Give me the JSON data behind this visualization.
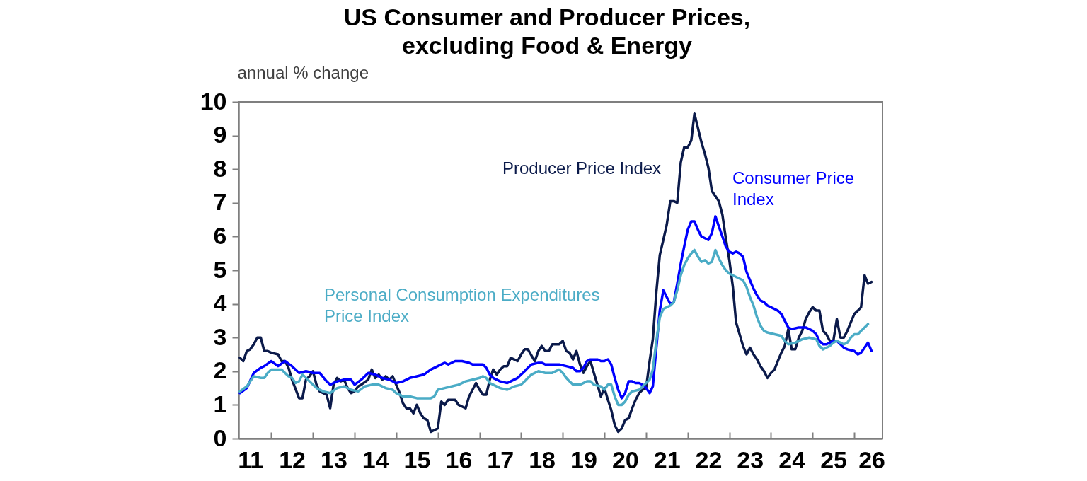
{
  "chart_data": {
    "type": "line",
    "title": "US Consumer and Producer Prices,\nexcluding Food & Energy",
    "ylabel": "annual % change",
    "xlim": [
      "2011-03-20",
      "2026-09-05"
    ],
    "xticks": [
      {
        "value": "2011-07",
        "label": "11"
      },
      {
        "value": "2012",
        "label": null
      },
      {
        "value": "2012-07",
        "label": "12"
      },
      {
        "value": "2013",
        "label": null
      },
      {
        "value": "2013-07",
        "label": "13"
      },
      {
        "value": "2014",
        "label": null
      },
      {
        "value": "2014-07",
        "label": "14"
      },
      {
        "value": "2015",
        "label": null
      },
      {
        "value": "2015-07",
        "label": "15"
      },
      {
        "value": "2016",
        "label": null
      },
      {
        "value": "2016-07",
        "label": "16"
      },
      {
        "value": "2017",
        "label": null
      },
      {
        "value": "2017-07",
        "label": "17"
      },
      {
        "value": "2018",
        "label": null
      },
      {
        "value": "2018-07",
        "label": "18"
      },
      {
        "value": "2019",
        "label": null
      },
      {
        "value": "2019-07",
        "label": "19"
      },
      {
        "value": "2020",
        "label": null
      },
      {
        "value": "2020-07",
        "label": "20"
      },
      {
        "value": "2021",
        "label": null
      },
      {
        "value": "2021-07",
        "label": "21"
      },
      {
        "value": "2022",
        "label": null
      },
      {
        "value": "2022-07",
        "label": "22"
      },
      {
        "value": "2023",
        "label": null
      },
      {
        "value": "2023-07",
        "label": "23"
      },
      {
        "value": "2024",
        "label": null
      },
      {
        "value": "2024-07",
        "label": "24"
      },
      {
        "value": "2025",
        "label": null
      },
      {
        "value": "2025-07",
        "label": "25"
      },
      {
        "value": "2026",
        "label": null
      },
      {
        "value": "2026-06",
        "label": "26"
      }
    ],
    "ylim": [
      0,
      10
    ],
    "yticks": [
      0,
      1,
      2,
      3,
      4,
      5,
      6,
      7,
      8,
      9,
      10
    ],
    "legend": false,
    "series": [
      {
        "name": "Producer Price Index",
        "color": "#0b1a4a",
        "x": [
          "2011-04",
          "2011-05",
          "2011-06",
          "2011-07",
          "2011-08",
          "2011-09",
          "2011-10",
          "2011-11",
          "2011-12",
          "2012-01",
          "2012-03",
          "2012-04",
          "2012-05",
          "2012-06",
          "2012-07",
          "2012-09",
          "2012-10",
          "2012-11",
          "2012-12",
          "2013-01",
          "2013-02",
          "2013-03",
          "2013-04",
          "2013-05",
          "2013-06",
          "2013-07",
          "2013-08",
          "2013-09",
          "2013-10",
          "2013-11",
          "2013-12",
          "2014-01",
          "2014-02",
          "2014-03",
          "2014-05",
          "2014-06",
          "2014-07",
          "2014-08",
          "2014-09",
          "2014-10",
          "2014-11",
          "2014-12",
          "2015-01",
          "2015-02",
          "2015-03",
          "2015-04",
          "2015-05",
          "2015-06",
          "2015-07",
          "2015-08",
          "2015-09",
          "2015-10",
          "2015-11",
          "2015-12",
          "2016-01",
          "2016-02",
          "2016-03",
          "2016-04",
          "2016-05",
          "2016-06",
          "2016-07",
          "2016-08",
          "2016-09",
          "2016-10",
          "2016-11",
          "2016-12",
          "2017-01",
          "2017-02",
          "2017-03",
          "2017-04",
          "2017-05",
          "2017-06",
          "2017-07",
          "2017-08",
          "2017-09",
          "2017-10",
          "2017-11",
          "2017-12",
          "2018-01",
          "2018-02",
          "2018-03",
          "2018-05",
          "2018-06",
          "2018-07",
          "2018-08",
          "2018-09",
          "2018-10",
          "2018-12",
          "2019-01",
          "2019-02",
          "2019-03",
          "2019-04",
          "2019-05",
          "2019-06",
          "2019-07",
          "2019-08",
          "2019-09",
          "2019-10",
          "2019-11",
          "2019-12",
          "2020-01",
          "2020-02",
          "2020-03",
          "2020-04",
          "2020-05",
          "2020-06",
          "2020-07",
          "2020-08",
          "2020-09",
          "2020-10",
          "2020-11",
          "2020-12",
          "2021-01",
          "2021-02",
          "2021-03",
          "2021-04",
          "2021-05",
          "2021-06",
          "2021-07",
          "2021-08",
          "2021-09",
          "2021-10",
          "2021-11",
          "2021-12",
          "2022-01",
          "2022-02",
          "2022-03",
          "2022-05",
          "2022-06",
          "2022-07",
          "2022-08",
          "2022-09",
          "2022-10",
          "2022-11",
          "2022-12",
          "2023-01",
          "2023-02",
          "2023-03",
          "2023-04",
          "2023-05",
          "2023-06",
          "2023-07",
          "2023-08",
          "2023-09",
          "2023-10",
          "2023-11",
          "2023-12",
          "2024-01",
          "2024-02",
          "2024-03",
          "2024-04",
          "2024-05",
          "2024-06",
          "2024-07",
          "2024-08",
          "2024-09",
          "2024-10",
          "2024-11",
          "2024-12",
          "2025-01",
          "2025-02",
          "2025-03",
          "2025-04",
          "2025-05",
          "2025-06",
          "2025-07",
          "2025-08",
          "2025-09",
          "2025-10",
          "2025-11",
          "2025-12",
          "2026-01",
          "2026-02",
          "2026-03",
          "2026-04",
          "2026-05",
          "2026-06"
        ],
        "values": [
          2.4,
          2.3,
          2.6,
          2.65,
          2.8,
          3.0,
          3.0,
          2.6,
          2.6,
          2.55,
          2.5,
          2.3,
          2.3,
          2.1,
          1.75,
          1.2,
          1.2,
          1.75,
          1.85,
          2.0,
          1.6,
          1.4,
          1.35,
          1.3,
          0.9,
          1.6,
          1.8,
          1.7,
          1.75,
          1.5,
          1.35,
          1.4,
          1.55,
          1.6,
          1.75,
          2.05,
          1.8,
          1.9,
          1.75,
          1.85,
          1.75,
          1.85,
          1.6,
          1.35,
          1.05,
          0.9,
          0.9,
          0.75,
          1.0,
          0.75,
          0.6,
          0.55,
          0.2,
          0.25,
          0.3,
          1.1,
          1.0,
          1.15,
          1.15,
          1.15,
          1.0,
          0.95,
          0.9,
          1.25,
          1.45,
          1.65,
          1.45,
          1.3,
          1.3,
          1.75,
          2.05,
          1.9,
          2.05,
          2.15,
          2.15,
          2.4,
          2.35,
          2.3,
          2.5,
          2.65,
          2.65,
          2.3,
          2.6,
          2.75,
          2.6,
          2.6,
          2.8,
          2.8,
          2.9,
          2.6,
          2.55,
          2.35,
          2.6,
          2.2,
          1.95,
          2.15,
          2.3,
          1.95,
          1.6,
          1.25,
          1.5,
          1.15,
          0.85,
          0.4,
          0.2,
          0.3,
          0.55,
          0.6,
          0.9,
          1.15,
          1.35,
          1.45,
          1.5,
          2.3,
          2.95,
          4.35,
          5.45,
          5.9,
          6.35,
          7.05,
          7.05,
          7.0,
          8.2,
          8.65,
          8.65,
          8.85,
          9.65,
          8.8,
          8.45,
          8.05,
          7.35,
          7.2,
          7.05,
          6.65,
          5.95,
          5.3,
          4.5,
          3.45,
          3.1,
          2.75,
          2.5,
          2.7,
          2.5,
          2.35,
          2.15,
          2.0,
          1.8,
          1.95,
          2.05,
          2.3,
          2.55,
          2.75,
          3.25,
          2.65,
          2.65,
          3.0,
          3.2,
          3.55,
          3.75,
          3.9,
          3.8,
          3.8,
          3.2,
          3.1,
          2.9,
          2.9,
          3.55,
          3.0,
          3.0,
          3.2,
          3.45,
          3.7,
          3.8,
          3.9,
          4.85,
          4.6,
          4.65
        ]
      },
      {
        "name": "Consumer Price Index",
        "color": "#0000ff",
        "x": [
          "2011-04",
          "2011-06",
          "2011-08",
          "2011-10",
          "2011-11",
          "2012-01",
          "2012-03",
          "2012-05",
          "2012-07",
          "2012-09",
          "2012-11",
          "2013-01",
          "2013-03",
          "2013-05",
          "2013-06",
          "2013-08",
          "2013-10",
          "2013-12",
          "2014-01",
          "2014-03",
          "2014-05",
          "2014-07",
          "2014-09",
          "2014-11",
          "2015-01",
          "2015-03",
          "2015-05",
          "2015-07",
          "2015-09",
          "2015-11",
          "2016-01",
          "2016-03",
          "2016-04",
          "2016-06",
          "2016-08",
          "2016-10",
          "2016-11",
          "2017-01",
          "2017-02",
          "2017-03",
          "2017-04",
          "2017-05",
          "2017-07",
          "2017-09",
          "2017-10",
          "2017-12",
          "2018-02",
          "2018-03",
          "2018-04",
          "2018-06",
          "2018-07",
          "2018-08",
          "2018-10",
          "2018-12",
          "2019-02",
          "2019-04",
          "2019-05",
          "2019-06",
          "2019-07",
          "2019-08",
          "2019-09",
          "2019-11",
          "2019-12",
          "2020-01",
          "2020-02",
          "2020-03",
          "2020-04",
          "2020-05",
          "2020-06",
          "2020-07",
          "2020-08",
          "2020-09",
          "2020-10",
          "2020-11",
          "2020-12",
          "2021-01",
          "2021-02",
          "2021-03",
          "2021-04",
          "2021-05",
          "2021-06",
          "2021-07",
          "2021-08",
          "2021-09",
          "2021-10",
          "2021-11",
          "2021-12",
          "2022-01",
          "2022-02",
          "2022-03",
          "2022-04",
          "2022-05",
          "2022-06",
          "2022-07",
          "2022-08",
          "2022-09",
          "2022-10",
          "2022-11",
          "2022-12",
          "2023-01",
          "2023-02",
          "2023-03",
          "2023-04",
          "2023-05",
          "2023-06",
          "2023-07",
          "2023-08",
          "2023-09",
          "2023-10",
          "2023-11",
          "2023-12",
          "2024-01",
          "2024-02",
          "2024-03",
          "2024-04",
          "2024-05",
          "2024-06",
          "2024-07",
          "2024-09",
          "2024-11",
          "2025-01",
          "2025-02",
          "2025-03",
          "2025-04",
          "2025-05",
          "2025-06",
          "2025-07",
          "2025-08",
          "2025-09",
          "2025-10",
          "2025-11",
          "2026-01",
          "2026-02",
          "2026-03",
          "2026-04",
          "2026-05",
          "2026-06"
        ],
        "values": [
          1.35,
          1.5,
          1.95,
          2.1,
          2.15,
          2.3,
          2.15,
          2.3,
          2.15,
          1.95,
          2.0,
          1.95,
          1.95,
          1.7,
          1.6,
          1.7,
          1.75,
          1.75,
          1.6,
          1.75,
          1.95,
          1.9,
          1.8,
          1.75,
          1.65,
          1.7,
          1.8,
          1.85,
          1.9,
          2.05,
          2.15,
          2.25,
          2.2,
          2.3,
          2.3,
          2.25,
          2.2,
          2.2,
          2.2,
          2.1,
          1.9,
          1.8,
          1.7,
          1.65,
          1.7,
          1.8,
          2.0,
          2.1,
          2.2,
          2.25,
          2.25,
          2.2,
          2.2,
          2.2,
          2.15,
          2.1,
          2.0,
          2.0,
          2.1,
          2.3,
          2.35,
          2.35,
          2.3,
          2.3,
          2.35,
          2.2,
          1.8,
          1.45,
          1.2,
          1.35,
          1.7,
          1.7,
          1.65,
          1.65,
          1.6,
          1.5,
          1.35,
          1.55,
          2.7,
          3.8,
          4.4,
          4.2,
          4.0,
          4.05,
          4.6,
          5.2,
          5.7,
          6.2,
          6.45,
          6.45,
          6.2,
          6.0,
          5.95,
          5.9,
          6.1,
          6.6,
          6.3,
          6.0,
          5.7,
          5.55,
          5.5,
          5.55,
          5.5,
          5.4,
          4.95,
          4.7,
          4.45,
          4.25,
          4.1,
          4.05,
          3.95,
          3.9,
          3.85,
          3.8,
          3.7,
          3.5,
          3.3,
          3.25,
          3.3,
          3.3,
          3.2,
          3.1,
          2.9,
          2.8,
          2.8,
          2.85,
          2.9,
          2.9,
          2.8,
          2.7,
          2.65,
          2.6,
          2.5,
          2.55,
          2.7,
          2.85,
          2.6
        ]
      },
      {
        "name": "Personal Consumption Expenditures Price Index",
        "color": "#4bacc6",
        "x": [
          "2011-04",
          "2011-06",
          "2011-07",
          "2011-08",
          "2011-10",
          "2011-11",
          "2011-12",
          "2012-01",
          "2012-03",
          "2012-04",
          "2012-05",
          "2012-06",
          "2012-07",
          "2012-08",
          "2012-09",
          "2012-10",
          "2012-11",
          "2012-12",
          "2013-01",
          "2013-02",
          "2013-04",
          "2013-06",
          "2013-08",
          "2013-10",
          "2013-12",
          "2014-02",
          "2014-04",
          "2014-06",
          "2014-08",
          "2014-10",
          "2014-12",
          "2015-01",
          "2015-02",
          "2015-03",
          "2015-05",
          "2015-07",
          "2015-09",
          "2015-11",
          "2015-12",
          "2016-01",
          "2016-03",
          "2016-05",
          "2016-07",
          "2016-09",
          "2016-11",
          "2017-01",
          "2017-02",
          "2017-03",
          "2017-04",
          "2017-05",
          "2017-07",
          "2017-09",
          "2017-11",
          "2018-01",
          "2018-02",
          "2018-03",
          "2018-04",
          "2018-06",
          "2018-08",
          "2018-10",
          "2018-12",
          "2019-01",
          "2019-02",
          "2019-03",
          "2019-04",
          "2019-06",
          "2019-08",
          "2019-09",
          "2019-10",
          "2019-12",
          "2020-01",
          "2020-02",
          "2020-03",
          "2020-04",
          "2020-05",
          "2020-06",
          "2020-07",
          "2020-08",
          "2020-09",
          "2020-11",
          "2020-12",
          "2021-01",
          "2021-02",
          "2021-03",
          "2021-04",
          "2021-05",
          "2021-06",
          "2021-07",
          "2021-08",
          "2021-09",
          "2021-10",
          "2021-11",
          "2021-12",
          "2022-01",
          "2022-02",
          "2022-03",
          "2022-04",
          "2022-05",
          "2022-06",
          "2022-07",
          "2022-08",
          "2022-09",
          "2022-10",
          "2022-11",
          "2022-12",
          "2023-01",
          "2023-03",
          "2023-05",
          "2023-06",
          "2023-07",
          "2023-08",
          "2023-09",
          "2023-10",
          "2023-11",
          "2023-12",
          "2024-02",
          "2024-04",
          "2024-05",
          "2024-06",
          "2024-08",
          "2024-10",
          "2024-12",
          "2025-02",
          "2025-03",
          "2025-04",
          "2025-05",
          "2025-06",
          "2025-07",
          "2025-08",
          "2025-09",
          "2025-10",
          "2025-11",
          "2025-12",
          "2026-01",
          "2026-02",
          "2026-03",
          "2026-04",
          "2026-05"
        ],
        "values": [
          1.4,
          1.55,
          1.7,
          1.85,
          1.8,
          1.8,
          1.95,
          2.05,
          2.05,
          2.05,
          1.95,
          1.85,
          1.8,
          1.65,
          1.7,
          1.9,
          1.8,
          1.7,
          1.6,
          1.5,
          1.4,
          1.35,
          1.5,
          1.55,
          1.45,
          1.4,
          1.55,
          1.6,
          1.6,
          1.5,
          1.45,
          1.35,
          1.3,
          1.25,
          1.25,
          1.2,
          1.2,
          1.2,
          1.25,
          1.45,
          1.5,
          1.55,
          1.6,
          1.7,
          1.75,
          1.8,
          1.85,
          1.8,
          1.65,
          1.6,
          1.5,
          1.45,
          1.55,
          1.6,
          1.7,
          1.8,
          1.9,
          2.0,
          1.95,
          1.95,
          2.05,
          1.95,
          1.8,
          1.7,
          1.6,
          1.6,
          1.7,
          1.7,
          1.6,
          1.55,
          1.45,
          1.6,
          1.6,
          1.25,
          1.0,
          1.0,
          1.1,
          1.3,
          1.4,
          1.45,
          1.55,
          1.65,
          1.75,
          2.05,
          2.9,
          3.6,
          3.85,
          3.9,
          3.95,
          4.05,
          4.4,
          4.85,
          5.15,
          5.35,
          5.5,
          5.6,
          5.4,
          5.25,
          5.3,
          5.2,
          5.25,
          5.6,
          5.35,
          5.15,
          5.0,
          4.9,
          4.8,
          4.7,
          4.5,
          4.2,
          3.95,
          3.6,
          3.35,
          3.2,
          3.15,
          3.1,
          3.05,
          2.9,
          2.8,
          2.85,
          2.95,
          3.0,
          2.95,
          2.75,
          2.65,
          2.7,
          2.75,
          2.85,
          2.9,
          2.85,
          2.8,
          2.85,
          3.0,
          3.1,
          3.1,
          3.2,
          3.3,
          3.4
        ]
      }
    ]
  }
}
